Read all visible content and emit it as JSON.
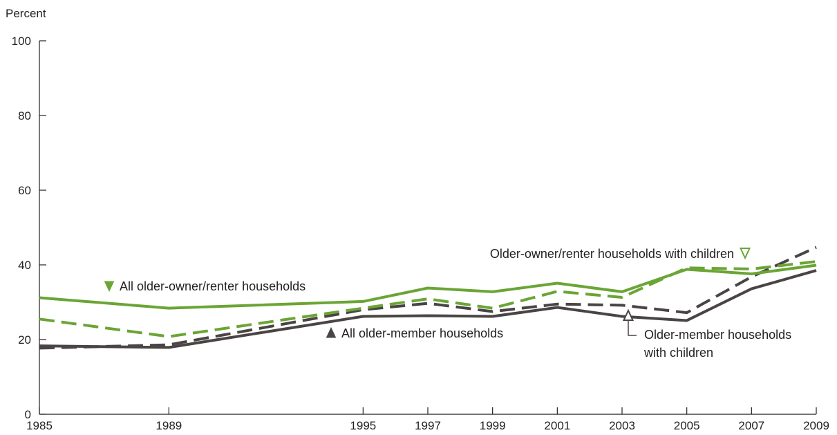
{
  "chart_data": {
    "type": "line",
    "ylabel": "Percent",
    "ylim": [
      0,
      100
    ],
    "yticks": [
      0,
      20,
      40,
      60,
      80,
      100
    ],
    "x": [
      1985,
      1989,
      1995,
      1997,
      1999,
      2001,
      2003,
      2005,
      2007,
      2009
    ],
    "grid": false,
    "colors": {
      "green": "#6aa535",
      "dark": "#4a4444",
      "axis": "#231f20"
    },
    "series": [
      {
        "name": "All older-owner/renter households",
        "color": "#6aa535",
        "dash": "solid",
        "values": [
          31.2,
          28.4,
          30.2,
          33.8,
          32.8,
          35.1,
          32.8,
          38.8,
          37.6,
          39.9
        ]
      },
      {
        "name": "Older-owner/renter households with children",
        "color": "#6aa535",
        "dash": "dashed",
        "values": [
          25.5,
          20.8,
          28.4,
          30.9,
          28.4,
          32.9,
          31.3,
          39.2,
          38.9,
          40.9
        ]
      },
      {
        "name": "All older-member households",
        "color": "#4a4444",
        "dash": "solid",
        "values": [
          18.3,
          17.9,
          26.2,
          26.4,
          26.2,
          28.6,
          26.2,
          25.1,
          33.6,
          38.5
        ]
      },
      {
        "name": "Older-member households with children",
        "color": "#4a4444",
        "dash": "dashed",
        "values": [
          17.7,
          18.6,
          28.0,
          29.7,
          27.5,
          29.5,
          29.2,
          27.2,
          36.8,
          44.7
        ]
      }
    ],
    "annotations": [
      {
        "label_lines": [
          "All older-owner/renter households"
        ],
        "marker": "down-filled",
        "color": "#6aa535"
      },
      {
        "label_lines": [
          "Older-owner/renter households with children"
        ],
        "marker": "down-open",
        "color": "#6aa535"
      },
      {
        "label_lines": [
          "All older-member households"
        ],
        "marker": "up-filled",
        "color": "#4a4444"
      },
      {
        "label_lines": [
          "Older-member households",
          "with children"
        ],
        "marker": "up-open",
        "color": "#4a4444"
      }
    ]
  }
}
